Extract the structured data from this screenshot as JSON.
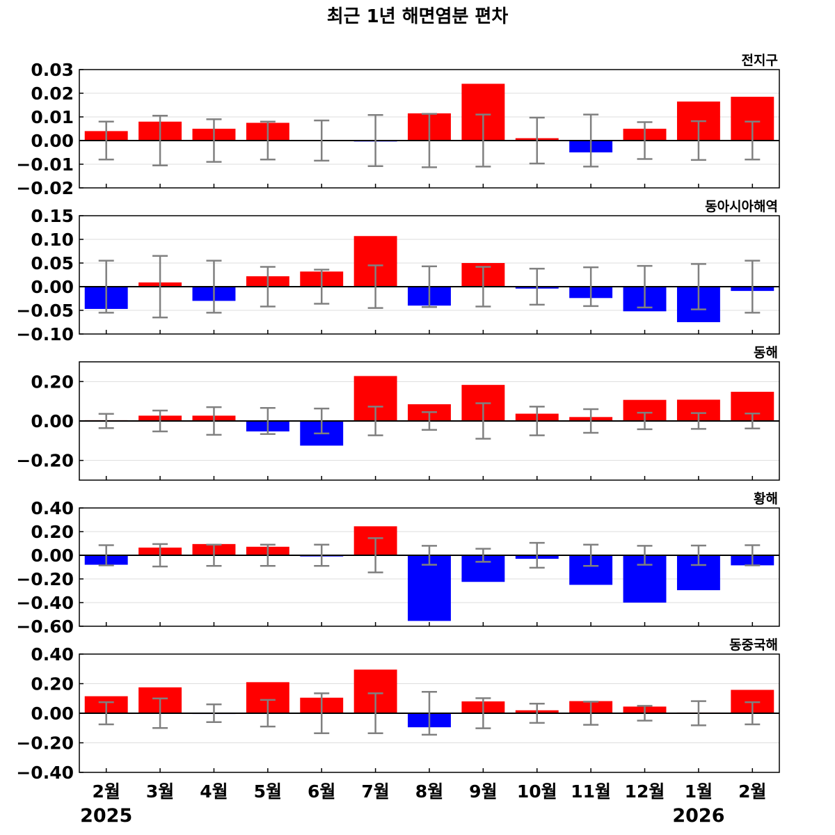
{
  "chart_data": {
    "type": "bar",
    "title": "최근 1년 해면염분 편차",
    "categories": [
      "2월",
      "3월",
      "4월",
      "5월",
      "6월",
      "7월",
      "8월",
      "9월",
      "10월",
      "11월",
      "12월",
      "1월",
      "2월"
    ],
    "year_labels": [
      {
        "category_index": 0,
        "text": "2025"
      },
      {
        "category_index": 11,
        "text": "2026"
      }
    ],
    "colors": {
      "positive": "#ff0000",
      "negative": "#0000ff",
      "error_bar": "#808080",
      "zero_line": "#000000",
      "grid": "#dddddd"
    },
    "panels": [
      {
        "name": "전지구",
        "ylim": [
          -0.02,
          0.03
        ],
        "yticks": [
          "0.03",
          "0.02",
          "0.01",
          "0.00",
          "−0.01",
          "−0.02"
        ],
        "ytick_values": [
          0.03,
          0.02,
          0.01,
          0.0,
          -0.01,
          -0.02
        ],
        "values": [
          0.004,
          0.008,
          0.005,
          0.0075,
          0.0002,
          -0.0004,
          0.0115,
          0.024,
          0.001,
          -0.005,
          0.005,
          0.0165,
          0.0185
        ],
        "errors": [
          0.008,
          0.0105,
          0.009,
          0.008,
          0.0085,
          0.0108,
          0.0113,
          0.011,
          0.0097,
          0.011,
          0.0078,
          0.0082,
          0.008
        ]
      },
      {
        "name": "동아시아해역",
        "ylim": [
          -0.1,
          0.15
        ],
        "yticks": [
          "0.15",
          "0.10",
          "0.05",
          "0.00",
          "−0.05",
          "−0.10"
        ],
        "ytick_values": [
          0.15,
          0.1,
          0.05,
          0.0,
          -0.05,
          -0.1
        ],
        "values": [
          -0.047,
          0.009,
          -0.03,
          0.022,
          0.032,
          0.107,
          -0.04,
          0.05,
          -0.004,
          -0.024,
          -0.052,
          -0.075,
          -0.009
        ],
        "errors": [
          0.055,
          0.065,
          0.055,
          0.042,
          0.036,
          0.045,
          0.043,
          0.042,
          0.038,
          0.041,
          0.044,
          0.048,
          0.055
        ]
      },
      {
        "name": "동해",
        "ylim": [
          -0.3,
          0.3
        ],
        "yticks": [
          "0.20",
          "0.00",
          "−0.20"
        ],
        "ytick_values": [
          0.2,
          0.0,
          -0.2
        ],
        "values": [
          0.004,
          0.027,
          0.027,
          -0.053,
          -0.125,
          0.228,
          0.085,
          0.183,
          0.037,
          0.02,
          0.107,
          0.108,
          0.148
        ],
        "errors": [
          0.036,
          0.053,
          0.07,
          0.066,
          0.063,
          0.073,
          0.045,
          0.09,
          0.073,
          0.06,
          0.042,
          0.04,
          0.038
        ]
      },
      {
        "name": "황해",
        "ylim": [
          -0.6,
          0.4
        ],
        "yticks": [
          "0.40",
          "0.20",
          "0.00",
          "−0.20",
          "−0.40",
          "−0.60"
        ],
        "ytick_values": [
          0.4,
          0.2,
          0.0,
          -0.2,
          -0.4,
          -0.6
        ],
        "values": [
          -0.08,
          0.065,
          0.095,
          0.072,
          -0.01,
          0.245,
          -0.555,
          -0.225,
          -0.03,
          -0.25,
          -0.4,
          -0.295,
          -0.085
        ],
        "errors": [
          0.085,
          0.095,
          0.09,
          0.09,
          0.09,
          0.145,
          0.08,
          0.055,
          0.105,
          0.09,
          0.08,
          0.082,
          0.085
        ]
      },
      {
        "name": "동중국해",
        "ylim": [
          -0.4,
          0.4
        ],
        "yticks": [
          "0.40",
          "0.20",
          "0.00",
          "−0.20",
          "−0.40"
        ],
        "ytick_values": [
          0.4,
          0.2,
          0.0,
          -0.2,
          -0.4
        ],
        "values": [
          0.115,
          0.175,
          -0.005,
          0.21,
          0.105,
          0.295,
          -0.095,
          0.08,
          0.02,
          0.082,
          0.045,
          0.005,
          0.158
        ],
        "errors": [
          0.075,
          0.1,
          0.06,
          0.09,
          0.135,
          0.135,
          0.145,
          0.102,
          0.065,
          0.078,
          0.05,
          0.082,
          0.075
        ]
      }
    ]
  }
}
